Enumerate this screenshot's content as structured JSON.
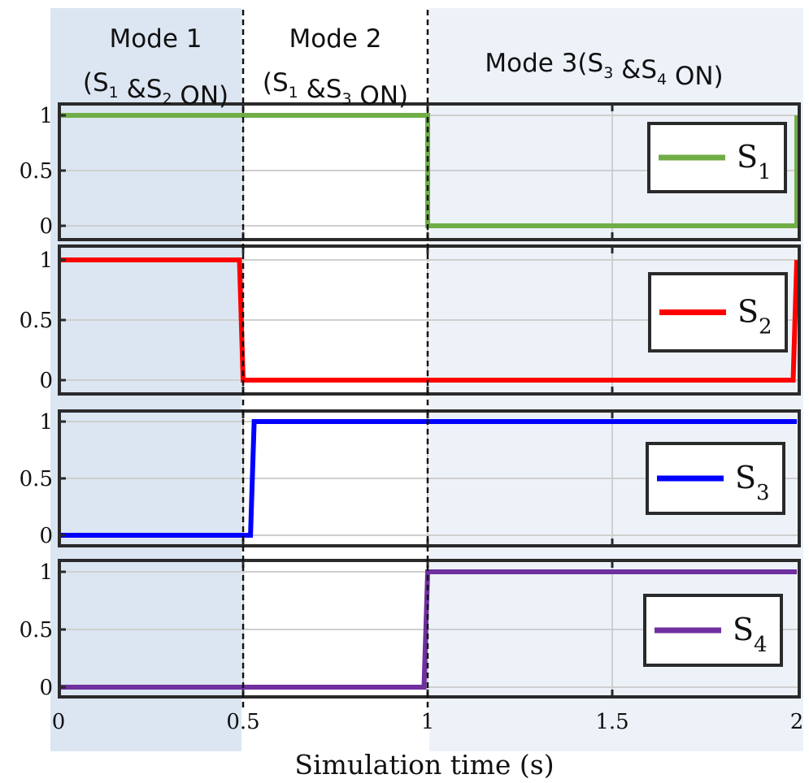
{
  "chart_data": {
    "type": "line",
    "step": true,
    "xlabel": "Simulation time (s)",
    "xlim": [
      0,
      2
    ],
    "xticks": [
      0,
      0.5,
      1,
      1.5,
      2
    ],
    "xtick_labels": [
      "0",
      "0.5",
      "1",
      "1.5",
      "2"
    ],
    "ylim": [
      0,
      1
    ],
    "yticks": [
      0,
      0.5,
      1
    ],
    "ytick_labels": [
      "0",
      "0.5",
      "1"
    ],
    "grid": true,
    "legend_position": "right",
    "modes": [
      {
        "id": "mode1",
        "label": "Mode 1",
        "condition": "(S1 &S2 ON)",
        "x_start": 0,
        "x_end": 0.5,
        "shade": "#dce6f2"
      },
      {
        "id": "mode2",
        "label": "Mode 2",
        "condition": "(S1 &S3 ON)",
        "x_start": 0.5,
        "x_end": 1,
        "shade": "#ffffff"
      },
      {
        "id": "mode3",
        "label": "Mode 3",
        "condition": "(S3 &S4 ON)",
        "x_start": 1,
        "x_end": 2,
        "shade": "#edf2f9"
      }
    ],
    "mode3_text": "Mode 3(S3 &S4 ON)",
    "series": [
      {
        "name": "S1",
        "color": "#70ad47",
        "x": [
          0,
          1.0,
          1.0,
          2.0,
          2.0
        ],
        "y": [
          1,
          1,
          0,
          0,
          1
        ]
      },
      {
        "name": "S2",
        "color": "#ff0000",
        "x": [
          0,
          0.49,
          0.5,
          1.99,
          2.0
        ],
        "y": [
          1,
          1,
          0,
          0,
          1
        ]
      },
      {
        "name": "S3",
        "color": "#0000ff",
        "x": [
          0,
          0.52,
          0.53,
          2.0
        ],
        "y": [
          0,
          0,
          1,
          1
        ]
      },
      {
        "name": "S4",
        "color": "#7030a0",
        "x": [
          0,
          0.99,
          1.0,
          2.0
        ],
        "y": [
          0,
          0,
          1,
          1
        ]
      }
    ]
  }
}
